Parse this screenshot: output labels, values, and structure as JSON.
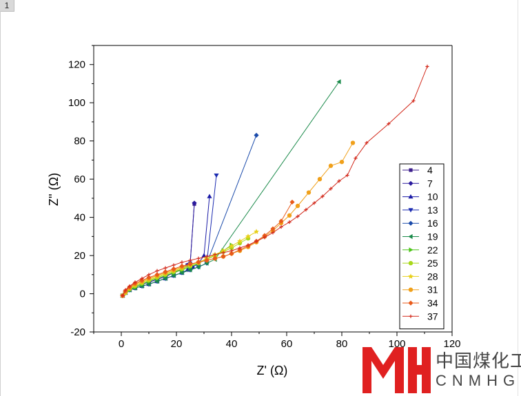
{
  "page": {
    "tab_label": "1"
  },
  "logo": {
    "chinese_text": "中国煤化工",
    "english_text": "CNMHG"
  },
  "chart_data": {
    "type": "scatter",
    "title": "",
    "xlabel": "Z' (Ω)",
    "ylabel": "Z'' (Ω)",
    "xlim": [
      -10,
      120
    ],
    "ylim": [
      -20,
      130
    ],
    "xticks": [
      0,
      20,
      40,
      60,
      80,
      100,
      120
    ],
    "yticks": [
      -20,
      0,
      20,
      40,
      60,
      80,
      100,
      120
    ],
    "grid": false,
    "legend_position": "right",
    "series": [
      {
        "name": "4",
        "color": "#3c1e8c",
        "marker": "square",
        "x": [
          0.5,
          1.5,
          3,
          5,
          7.5,
          10,
          13,
          16,
          19,
          22,
          24,
          25,
          26.5
        ],
        "y": [
          -1,
          0.5,
          2,
          3.5,
          5,
          6,
          7.5,
          9,
          11,
          13,
          15,
          16,
          47
        ]
      },
      {
        "name": "7",
        "color": "#2a1a9e",
        "marker": "diamond",
        "x": [
          0.5,
          1.5,
          3,
          5,
          7.5,
          10,
          13,
          16,
          19,
          22,
          24,
          25,
          26.5
        ],
        "y": [
          -1,
          0.5,
          2,
          3.5,
          5,
          6,
          7.5,
          9,
          11,
          13,
          15,
          16,
          47.5
        ]
      },
      {
        "name": "10",
        "color": "#1a1aa6",
        "marker": "triangle-up",
        "x": [
          0.5,
          1.5,
          3,
          5,
          7.5,
          10,
          13,
          16,
          19,
          22,
          24,
          26,
          28,
          30,
          32
        ],
        "y": [
          -1,
          0.5,
          2,
          3,
          4,
          5,
          6.5,
          8,
          9.5,
          11,
          12.5,
          14,
          16,
          20,
          51
        ]
      },
      {
        "name": "13",
        "color": "#1a2ab0",
        "marker": "triangle-down",
        "x": [
          0.5,
          1.5,
          3,
          5,
          7.5,
          10,
          13,
          16,
          19,
          22,
          25,
          28,
          31,
          34.5
        ],
        "y": [
          -1,
          0.5,
          2,
          3,
          4,
          5,
          6.5,
          8,
          9.5,
          11,
          12.5,
          14,
          16,
          62
        ]
      },
      {
        "name": "16",
        "color": "#1a4aaa",
        "marker": "diamond",
        "x": [
          0.5,
          1.5,
          3,
          5,
          7.5,
          10,
          13,
          16,
          19,
          22,
          25,
          28,
          31,
          49
        ],
        "y": [
          -1,
          0.5,
          2,
          3,
          4,
          5,
          6.5,
          8,
          9.5,
          11,
          12.5,
          14,
          16,
          83
        ]
      },
      {
        "name": "19",
        "color": "#1a8a4a",
        "marker": "triangle-left",
        "x": [
          0.5,
          1.5,
          3,
          5,
          7.5,
          10,
          13,
          16,
          19,
          22,
          25,
          28,
          31,
          34,
          79
        ],
        "y": [
          -1,
          0.5,
          2,
          3,
          4,
          5,
          6.5,
          8,
          9.5,
          11,
          12.5,
          14,
          16,
          18,
          111
        ]
      },
      {
        "name": "22",
        "color": "#4ec41a",
        "marker": "triangle-right",
        "x": [
          0.5,
          1.5,
          3,
          5,
          7.5,
          10,
          13,
          16,
          19,
          22,
          25,
          28,
          31,
          34,
          37,
          40
        ],
        "y": [
          -1,
          0.5,
          2,
          3.5,
          5,
          6.5,
          8,
          9.5,
          11,
          12.5,
          14,
          16,
          18,
          20,
          22.5,
          25.5
        ]
      },
      {
        "name": "25",
        "color": "#a8d81a",
        "marker": "circle",
        "x": [
          0.5,
          1.5,
          3,
          5,
          7.5,
          10,
          13,
          16,
          19,
          22,
          25,
          28,
          31,
          34,
          37,
          40,
          43,
          46
        ],
        "y": [
          -1,
          0.5,
          2.5,
          4,
          5.5,
          7,
          8.5,
          10,
          11.5,
          13,
          14.5,
          16,
          18,
          20,
          22,
          24,
          26.5,
          29
        ]
      },
      {
        "name": "28",
        "color": "#e8d01a",
        "marker": "star",
        "x": [
          0.5,
          1.5,
          3,
          5,
          7.5,
          10,
          13,
          16,
          19,
          22,
          25,
          28,
          31,
          34,
          37,
          40,
          43,
          46,
          49
        ],
        "y": [
          -1,
          0.5,
          3,
          4.5,
          6,
          7.5,
          9,
          10.5,
          12,
          13.5,
          15,
          16.5,
          18.5,
          20.5,
          22.5,
          25,
          27.5,
          30,
          32.5
        ]
      },
      {
        "name": "31",
        "color": "#f0a01a",
        "marker": "circle",
        "x": [
          0.5,
          1.5,
          3,
          5,
          7.5,
          10,
          13,
          16,
          19,
          22,
          25,
          28,
          31,
          34,
          37,
          40,
          43,
          46,
          49,
          52,
          55,
          58,
          61,
          64,
          68,
          72,
          76,
          80,
          84
        ],
        "y": [
          -1,
          1,
          3,
          5,
          6.5,
          8,
          9.5,
          11,
          12.5,
          14,
          15.5,
          16.5,
          17.5,
          18.5,
          19.5,
          21,
          22.5,
          24.5,
          27,
          30,
          33,
          37,
          41,
          46,
          53,
          60,
          67,
          69,
          79
        ]
      },
      {
        "name": "34",
        "color": "#e85a1a",
        "marker": "diamond",
        "x": [
          0.5,
          1.5,
          3,
          5,
          7.5,
          10,
          13,
          16,
          19,
          22,
          25,
          28,
          31,
          34,
          37,
          40,
          43,
          46,
          49,
          52,
          55,
          58,
          62
        ],
        "y": [
          -1,
          1.5,
          3.5,
          5.5,
          7,
          8.5,
          10,
          11.5,
          13,
          14.5,
          15.5,
          16.5,
          17.5,
          18.5,
          19.5,
          21,
          23,
          25,
          27.5,
          30.5,
          34,
          38,
          48
        ]
      },
      {
        "name": "37",
        "color": "#d2281a",
        "marker": "plus",
        "x": [
          0.5,
          1.5,
          3,
          5,
          7.5,
          10,
          13,
          16,
          19,
          22,
          25,
          28,
          31,
          34,
          37,
          40,
          43,
          46,
          49,
          52,
          55,
          58,
          61,
          64,
          67,
          70,
          73,
          76,
          79,
          82,
          85,
          89,
          97,
          106,
          111
        ],
        "y": [
          -1,
          2,
          4,
          6,
          8,
          10,
          12,
          13.5,
          15,
          16.5,
          17.5,
          18.5,
          19.5,
          20.5,
          21.5,
          22.5,
          24,
          25.5,
          27.5,
          29.5,
          32,
          35,
          37.5,
          40.5,
          44,
          47.5,
          51,
          55,
          59,
          62,
          71,
          79,
          89,
          101,
          119
        ]
      }
    ]
  }
}
